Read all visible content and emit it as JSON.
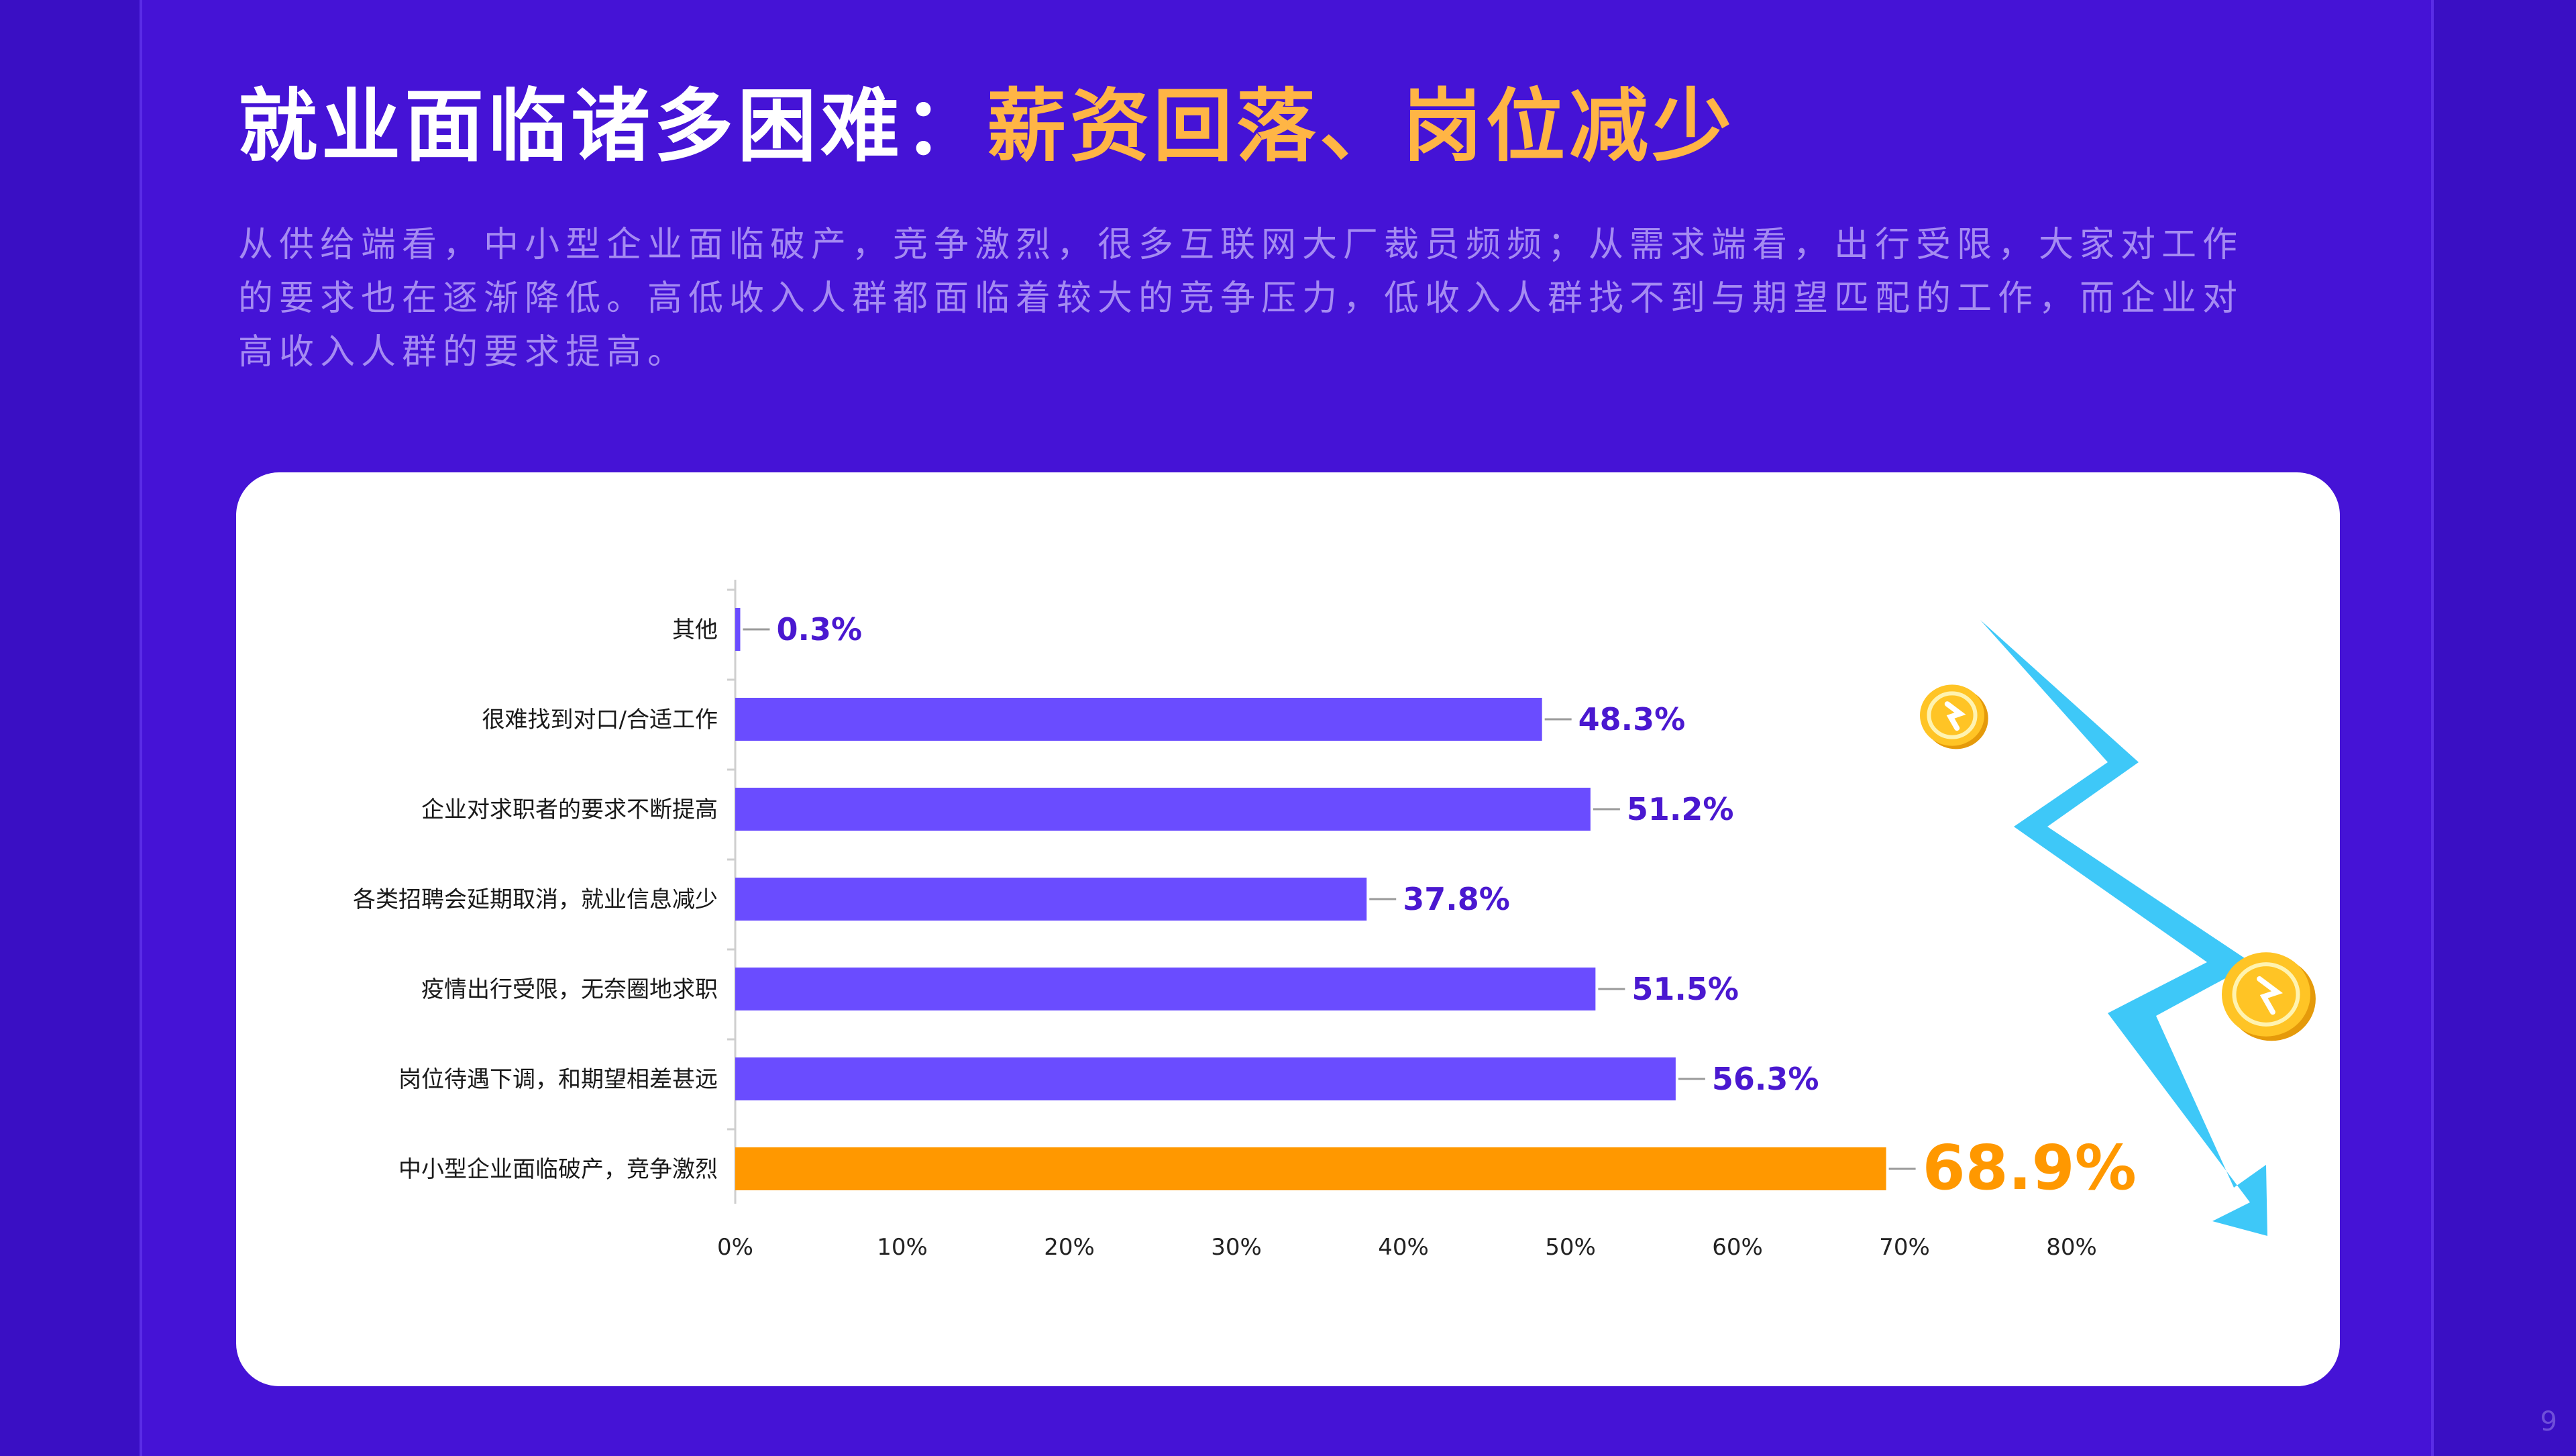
{
  "title": {
    "main": "就业面临诸多困难：",
    "highlight": "薪资回落、岗位减少"
  },
  "description": "从供给端看，中小型企业面临破产，竞争激烈，很多互联网大厂裁员频频；从需求端看，出行受限，大家对工作的要求也在逐渐降低。高低收入人群都面临着较大的竞争压力，低收入人群找不到与期望匹配的工作，而企业对高收入人群的要求提高。",
  "page_number": "9",
  "colors": {
    "bar": "#6a4cff",
    "highlight_bar": "#ff9800",
    "label": "#4a18d0",
    "highlight_label": "#ff9800",
    "arrow": "#3ec8f8",
    "coin": "#ffc425"
  },
  "decor_icons": [
    "coin-icon",
    "coin-icon",
    "zigzag-down-arrow-icon"
  ],
  "chart_data": {
    "type": "bar",
    "orientation": "horizontal",
    "categories": [
      "其他",
      "很难找到对口/合适工作",
      "企业对求职者的要求不断提高",
      "各类招聘会延期取消，就业信息减少",
      "疫情出行受限，无奈圈地求职",
      "岗位待遇下调，和期望相差甚远",
      "中小型企业面临破产，竞争激烈"
    ],
    "values": [
      0.3,
      48.3,
      51.2,
      37.8,
      51.5,
      56.3,
      68.9
    ],
    "value_labels": [
      "0.3%",
      "48.3%",
      "51.2%",
      "37.8%",
      "51.5%",
      "56.3%",
      "68.9%"
    ],
    "highlight_index": 6,
    "xlim": [
      0,
      80
    ],
    "xticks": [
      "0%",
      "10%",
      "20%",
      "30%",
      "40%",
      "50%",
      "60%",
      "70%",
      "80%"
    ],
    "grid": false,
    "legend": "none"
  }
}
